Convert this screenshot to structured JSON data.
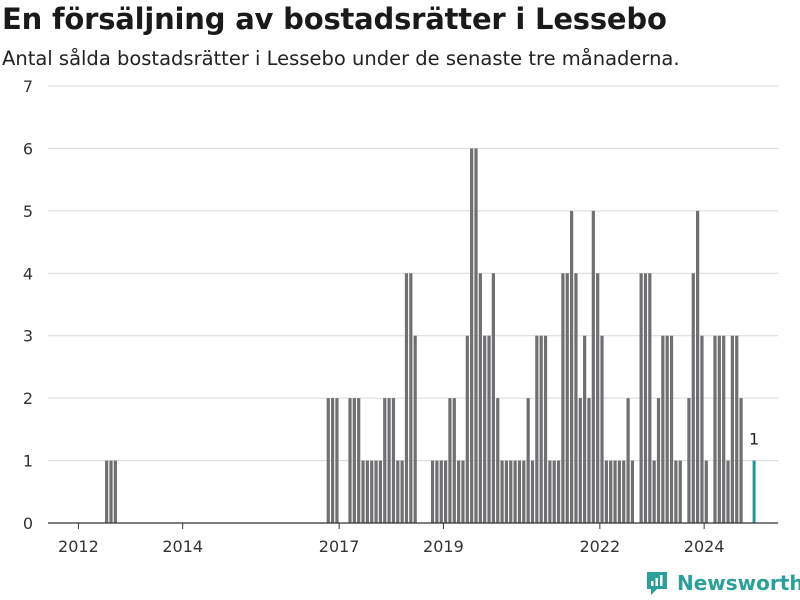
{
  "header": {
    "title": "En försäljning av bostadsrätter i Lessebo",
    "subtitle": "Antal sålda bostadsrätter i Lessebo under de senaste tre månaderna."
  },
  "brand": {
    "name": "Newsworthy",
    "color": "#2aa198"
  },
  "colors": {
    "bar": "#707073",
    "highlight": "#1a9e93",
    "grid": "#d9d9d9",
    "axis": "#333333"
  },
  "chart_data": {
    "type": "bar",
    "title": "En försäljning av bostadsrätter i Lessebo",
    "subtitle": "Antal sålda bostadsrätter i Lessebo under de senaste tre månaderna.",
    "xlabel": "",
    "ylabel": "",
    "x_range": [
      "2011-06",
      "2025-06"
    ],
    "ylim": [
      0,
      7
    ],
    "y_ticks": [
      0,
      1,
      2,
      3,
      4,
      5,
      6,
      7
    ],
    "x_ticks": [
      "2012",
      "2014",
      "2017",
      "2019",
      "2022",
      "2024"
    ],
    "grid": true,
    "highlight_label": "1",
    "series": [
      {
        "name": "",
        "data": [
          [
            "2012-07",
            1
          ],
          [
            "2012-08",
            1
          ],
          [
            "2012-09",
            1
          ],
          [
            "2016-10",
            2
          ],
          [
            "2016-11",
            2
          ],
          [
            "2016-12",
            2
          ],
          [
            "2017-03",
            2
          ],
          [
            "2017-04",
            2
          ],
          [
            "2017-05",
            2
          ],
          [
            "2017-06",
            1
          ],
          [
            "2017-07",
            1
          ],
          [
            "2017-08",
            1
          ],
          [
            "2017-09",
            1
          ],
          [
            "2017-10",
            1
          ],
          [
            "2017-11",
            2
          ],
          [
            "2017-12",
            2
          ],
          [
            "2018-01",
            2
          ],
          [
            "2018-02",
            1
          ],
          [
            "2018-03",
            1
          ],
          [
            "2018-04",
            4
          ],
          [
            "2018-05",
            4
          ],
          [
            "2018-06",
            3
          ],
          [
            "2018-10",
            1
          ],
          [
            "2018-11",
            1
          ],
          [
            "2018-12",
            1
          ],
          [
            "2019-01",
            1
          ],
          [
            "2019-02",
            2
          ],
          [
            "2019-03",
            2
          ],
          [
            "2019-04",
            1
          ],
          [
            "2019-05",
            1
          ],
          [
            "2019-06",
            3
          ],
          [
            "2019-07",
            6
          ],
          [
            "2019-08",
            6
          ],
          [
            "2019-09",
            4
          ],
          [
            "2019-10",
            3
          ],
          [
            "2019-11",
            3
          ],
          [
            "2019-12",
            4
          ],
          [
            "2020-01",
            2
          ],
          [
            "2020-02",
            1
          ],
          [
            "2020-03",
            1
          ],
          [
            "2020-04",
            1
          ],
          [
            "2020-05",
            1
          ],
          [
            "2020-06",
            1
          ],
          [
            "2020-07",
            1
          ],
          [
            "2020-08",
            2
          ],
          [
            "2020-09",
            1
          ],
          [
            "2020-10",
            3
          ],
          [
            "2020-11",
            3
          ],
          [
            "2020-12",
            3
          ],
          [
            "2021-01",
            1
          ],
          [
            "2021-02",
            1
          ],
          [
            "2021-03",
            1
          ],
          [
            "2021-04",
            4
          ],
          [
            "2021-05",
            4
          ],
          [
            "2021-06",
            5
          ],
          [
            "2021-07",
            4
          ],
          [
            "2021-08",
            2
          ],
          [
            "2021-09",
            3
          ],
          [
            "2021-10",
            2
          ],
          [
            "2021-11",
            5
          ],
          [
            "2021-12",
            4
          ],
          [
            "2022-01",
            3
          ],
          [
            "2022-02",
            1
          ],
          [
            "2022-03",
            1
          ],
          [
            "2022-04",
            1
          ],
          [
            "2022-05",
            1
          ],
          [
            "2022-06",
            1
          ],
          [
            "2022-07",
            2
          ],
          [
            "2022-08",
            1
          ],
          [
            "2022-10",
            4
          ],
          [
            "2022-11",
            4
          ],
          [
            "2022-12",
            4
          ],
          [
            "2023-01",
            1
          ],
          [
            "2023-02",
            2
          ],
          [
            "2023-03",
            3
          ],
          [
            "2023-04",
            3
          ],
          [
            "2023-05",
            3
          ],
          [
            "2023-06",
            1
          ],
          [
            "2023-07",
            1
          ],
          [
            "2023-09",
            2
          ],
          [
            "2023-10",
            4
          ],
          [
            "2023-11",
            5
          ],
          [
            "2023-12",
            3
          ],
          [
            "2024-01",
            1
          ],
          [
            "2024-03",
            3
          ],
          [
            "2024-04",
            3
          ],
          [
            "2024-05",
            3
          ],
          [
            "2024-06",
            1
          ],
          [
            "2024-07",
            3
          ],
          [
            "2024-08",
            3
          ],
          [
            "2024-09",
            2
          ],
          [
            "2024-12",
            1
          ]
        ]
      }
    ]
  }
}
